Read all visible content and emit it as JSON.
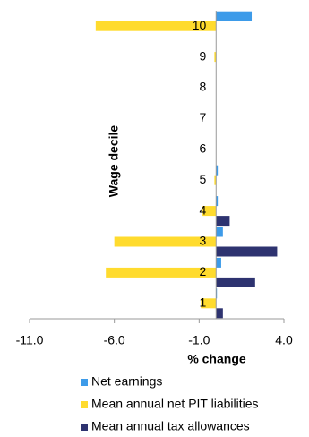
{
  "chart_data": {
    "type": "hbar",
    "x_label": "% change",
    "y_label": "Wage decile",
    "categories": [
      "1",
      "2",
      "3",
      "4",
      "5",
      "6",
      "7",
      "8",
      "9",
      "10"
    ],
    "series": [
      {
        "name": "Net earnings",
        "color": "#3d9be9",
        "values": [
          0.05,
          0.3,
          0.4,
          0.1,
          0.1,
          0,
          0,
          0,
          0,
          2.1
        ]
      },
      {
        "name": "Mean annual net PIT liabilities",
        "color": "#ffdb2e",
        "values": [
          -0.9,
          -6.5,
          -6.0,
          -0.8,
          -0.1,
          0,
          0,
          0,
          -0.1,
          -7.1
        ]
      },
      {
        "name": "Mean annual tax allowances",
        "color": "#2e3370",
        "values": [
          0.4,
          2.3,
          3.6,
          0.8,
          0,
          0,
          0,
          0,
          0,
          0
        ]
      }
    ],
    "xlim": [
      -11,
      4
    ],
    "xticks": [
      {
        "value": -11,
        "label": "-11.0"
      },
      {
        "value": -6,
        "label": "-6.0"
      },
      {
        "value": -1,
        "label": "-1.0"
      },
      {
        "value": 4,
        "label": "4.0"
      }
    ],
    "legend": "bottom"
  }
}
